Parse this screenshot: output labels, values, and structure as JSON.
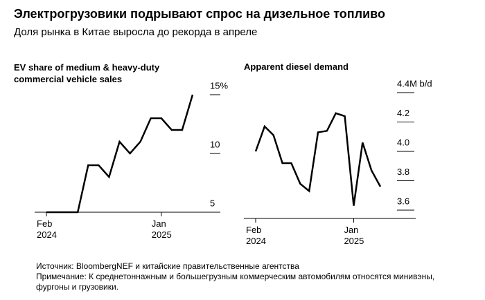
{
  "header": {
    "title": "Электрогрузовики подрывают спрос на дизельное топливо",
    "subtitle": "Доля рынка в Китае выросла до рекорда в апреле"
  },
  "chart_data": [
    {
      "type": "line",
      "title": "EV share of medium & heavy-duty commercial vehicle sales",
      "categories": [
        "Feb 2024",
        null,
        null,
        null,
        null,
        null,
        null,
        null,
        null,
        null,
        null,
        "Jan 2025",
        null,
        null,
        null
      ],
      "series": [
        {
          "name": "EV share",
          "color": "#000000",
          "values": [
            5,
            5,
            5,
            5,
            9,
            9,
            8,
            11,
            10,
            11,
            13,
            13,
            12,
            12,
            15
          ]
        }
      ],
      "ylim": [
        5,
        16
      ],
      "yticks": [
        5,
        10,
        {
          "value": 15,
          "label": "15%"
        }
      ]
    },
    {
      "type": "line",
      "title": "Apparent diesel demand",
      "categories": [
        "Feb 2024",
        null,
        null,
        null,
        null,
        null,
        null,
        null,
        null,
        null,
        null,
        "Jan 2025",
        null,
        null,
        null
      ],
      "series": [
        {
          "name": "Apparent diesel demand",
          "color": "#000000",
          "values": [
            4.0,
            4.17,
            4.11,
            3.92,
            3.92,
            3.78,
            3.73,
            4.13,
            4.14,
            4.26,
            4.24,
            3.63,
            4.06,
            3.87,
            3.76
          ]
        }
      ],
      "ylim": [
        3.6,
        4.45
      ],
      "yticks": [
        3.6,
        3.8,
        {
          "value": 4.0,
          "label": "4.0"
        },
        4.2,
        {
          "value": 4.4,
          "label": "4.4M b/d"
        }
      ]
    }
  ],
  "footer": {
    "source": "Источник: BloombergNEF и китайские правительственные агентства",
    "note": "Примечание: К среднетоннажным и большегрузным коммерческим автомобилям относятся минивэны, фургоны и грузовики."
  }
}
